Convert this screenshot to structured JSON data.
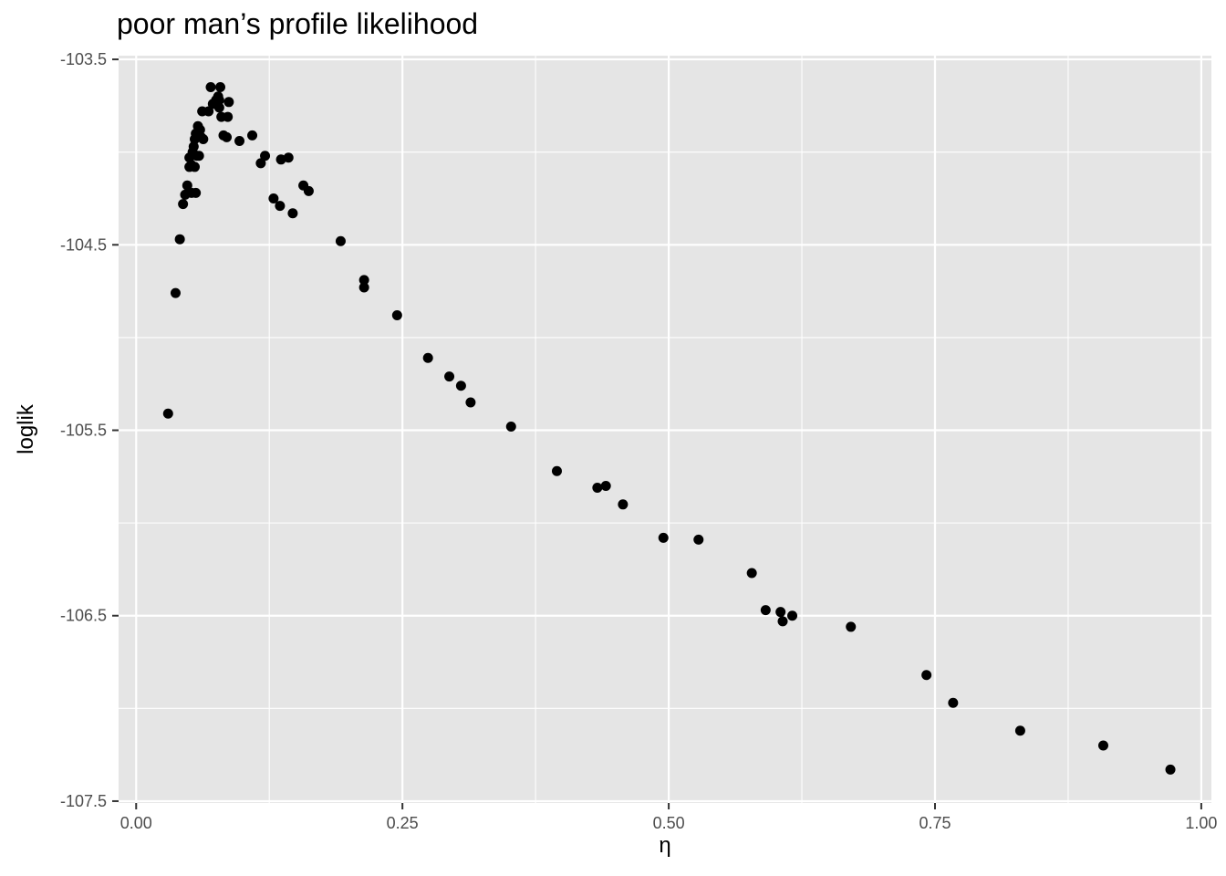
{
  "chart_data": {
    "type": "scatter",
    "title": "poor man’s profile likelihood",
    "xlabel": "η",
    "ylabel": "loglik",
    "xlim": [
      -0.0165,
      1.0095
    ],
    "ylim": [
      -107.51,
      -103.48
    ],
    "x_breaks": [
      0.0,
      0.25,
      0.5,
      0.75,
      1.0
    ],
    "x_tick_labels": [
      "0.00",
      "0.25",
      "0.50",
      "0.75",
      "1.00"
    ],
    "x_minor_breaks": [
      0.125,
      0.375,
      0.625,
      0.875
    ],
    "y_breaks": [
      -103.5,
      -104.5,
      -105.5,
      -106.5,
      -107.5
    ],
    "y_tick_labels": [
      "-103.5",
      "-104.5",
      "-105.5",
      "-106.5",
      "-107.5"
    ],
    "y_minor_breaks": [
      -104.0,
      -105.0,
      -106.0,
      -107.0
    ],
    "grid": true,
    "legend": "none",
    "colors": {
      "panel": "#e5e5e5",
      "grid": "#ffffff",
      "point": "#000000",
      "tick_text": "#4d4d4d",
      "tick": "#333333"
    },
    "points": [
      {
        "x": 0.03,
        "y": -105.41
      },
      {
        "x": 0.037,
        "y": -104.76
      },
      {
        "x": 0.041,
        "y": -104.47
      },
      {
        "x": 0.044,
        "y": -104.28
      },
      {
        "x": 0.046,
        "y": -104.23
      },
      {
        "x": 0.048,
        "y": -104.18
      },
      {
        "x": 0.05,
        "y": -104.03
      },
      {
        "x": 0.05,
        "y": -104.08
      },
      {
        "x": 0.052,
        "y": -104.22
      },
      {
        "x": 0.052,
        "y": -104.07
      },
      {
        "x": 0.053,
        "y": -104.0
      },
      {
        "x": 0.054,
        "y": -103.97
      },
      {
        "x": 0.055,
        "y": -103.93
      },
      {
        "x": 0.055,
        "y": -104.08
      },
      {
        "x": 0.056,
        "y": -104.22
      },
      {
        "x": 0.056,
        "y": -103.9
      },
      {
        "x": 0.057,
        "y": -104.02
      },
      {
        "x": 0.058,
        "y": -103.86
      },
      {
        "x": 0.059,
        "y": -104.02
      },
      {
        "x": 0.06,
        "y": -103.88
      },
      {
        "x": 0.061,
        "y": -103.92
      },
      {
        "x": 0.062,
        "y": -103.78
      },
      {
        "x": 0.063,
        "y": -103.93
      },
      {
        "x": 0.068,
        "y": -103.78
      },
      {
        "x": 0.07,
        "y": -103.65
      },
      {
        "x": 0.072,
        "y": -103.74
      },
      {
        "x": 0.075,
        "y": -103.72
      },
      {
        "x": 0.077,
        "y": -103.7
      },
      {
        "x": 0.078,
        "y": -103.76
      },
      {
        "x": 0.078,
        "y": -103.72
      },
      {
        "x": 0.079,
        "y": -103.65
      },
      {
        "x": 0.08,
        "y": -103.81
      },
      {
        "x": 0.082,
        "y": -103.91
      },
      {
        "x": 0.085,
        "y": -103.92
      },
      {
        "x": 0.086,
        "y": -103.81
      },
      {
        "x": 0.087,
        "y": -103.73
      },
      {
        "x": 0.097,
        "y": -103.94
      },
      {
        "x": 0.109,
        "y": -103.91
      },
      {
        "x": 0.117,
        "y": -104.06
      },
      {
        "x": 0.121,
        "y": -104.02
      },
      {
        "x": 0.129,
        "y": -104.25
      },
      {
        "x": 0.135,
        "y": -104.29
      },
      {
        "x": 0.136,
        "y": -104.04
      },
      {
        "x": 0.143,
        "y": -104.03
      },
      {
        "x": 0.147,
        "y": -104.33
      },
      {
        "x": 0.157,
        "y": -104.18
      },
      {
        "x": 0.162,
        "y": -104.21
      },
      {
        "x": 0.192,
        "y": -104.48
      },
      {
        "x": 0.214,
        "y": -104.69
      },
      {
        "x": 0.214,
        "y": -104.73
      },
      {
        "x": 0.245,
        "y": -104.88
      },
      {
        "x": 0.274,
        "y": -105.11
      },
      {
        "x": 0.294,
        "y": -105.21
      },
      {
        "x": 0.305,
        "y": -105.26
      },
      {
        "x": 0.314,
        "y": -105.35
      },
      {
        "x": 0.352,
        "y": -105.48
      },
      {
        "x": 0.395,
        "y": -105.72
      },
      {
        "x": 0.433,
        "y": -105.81
      },
      {
        "x": 0.441,
        "y": -105.8
      },
      {
        "x": 0.457,
        "y": -105.9
      },
      {
        "x": 0.495,
        "y": -106.08
      },
      {
        "x": 0.528,
        "y": -106.09
      },
      {
        "x": 0.578,
        "y": -106.27
      },
      {
        "x": 0.591,
        "y": -106.47
      },
      {
        "x": 0.605,
        "y": -106.48
      },
      {
        "x": 0.607,
        "y": -106.53
      },
      {
        "x": 0.616,
        "y": -106.5
      },
      {
        "x": 0.671,
        "y": -106.56
      },
      {
        "x": 0.742,
        "y": -106.82
      },
      {
        "x": 0.767,
        "y": -106.97
      },
      {
        "x": 0.83,
        "y": -107.12
      },
      {
        "x": 0.908,
        "y": -107.2
      },
      {
        "x": 0.971,
        "y": -107.33
      }
    ]
  }
}
